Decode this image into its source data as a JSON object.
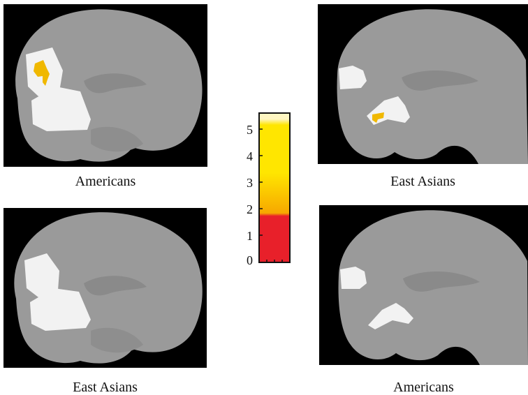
{
  "panels": {
    "top_left": {
      "caption": "Americans"
    },
    "top_right": {
      "caption": "East Asians"
    },
    "bottom_left": {
      "caption": "East Asians"
    },
    "bottom_right": {
      "caption": "Americans"
    }
  },
  "colorbar": {
    "ticks": [
      "5",
      "4",
      "3",
      "2",
      "1",
      "0"
    ],
    "colors": {
      "low": "#e8202a",
      "mid": "#f7a800",
      "high": "#ffe600",
      "top": "#fff6c2"
    }
  },
  "colors": {
    "brain": "#9a9a9a",
    "background": "#000000",
    "region": "#f2f2f2",
    "activation": "#f0b800"
  }
}
